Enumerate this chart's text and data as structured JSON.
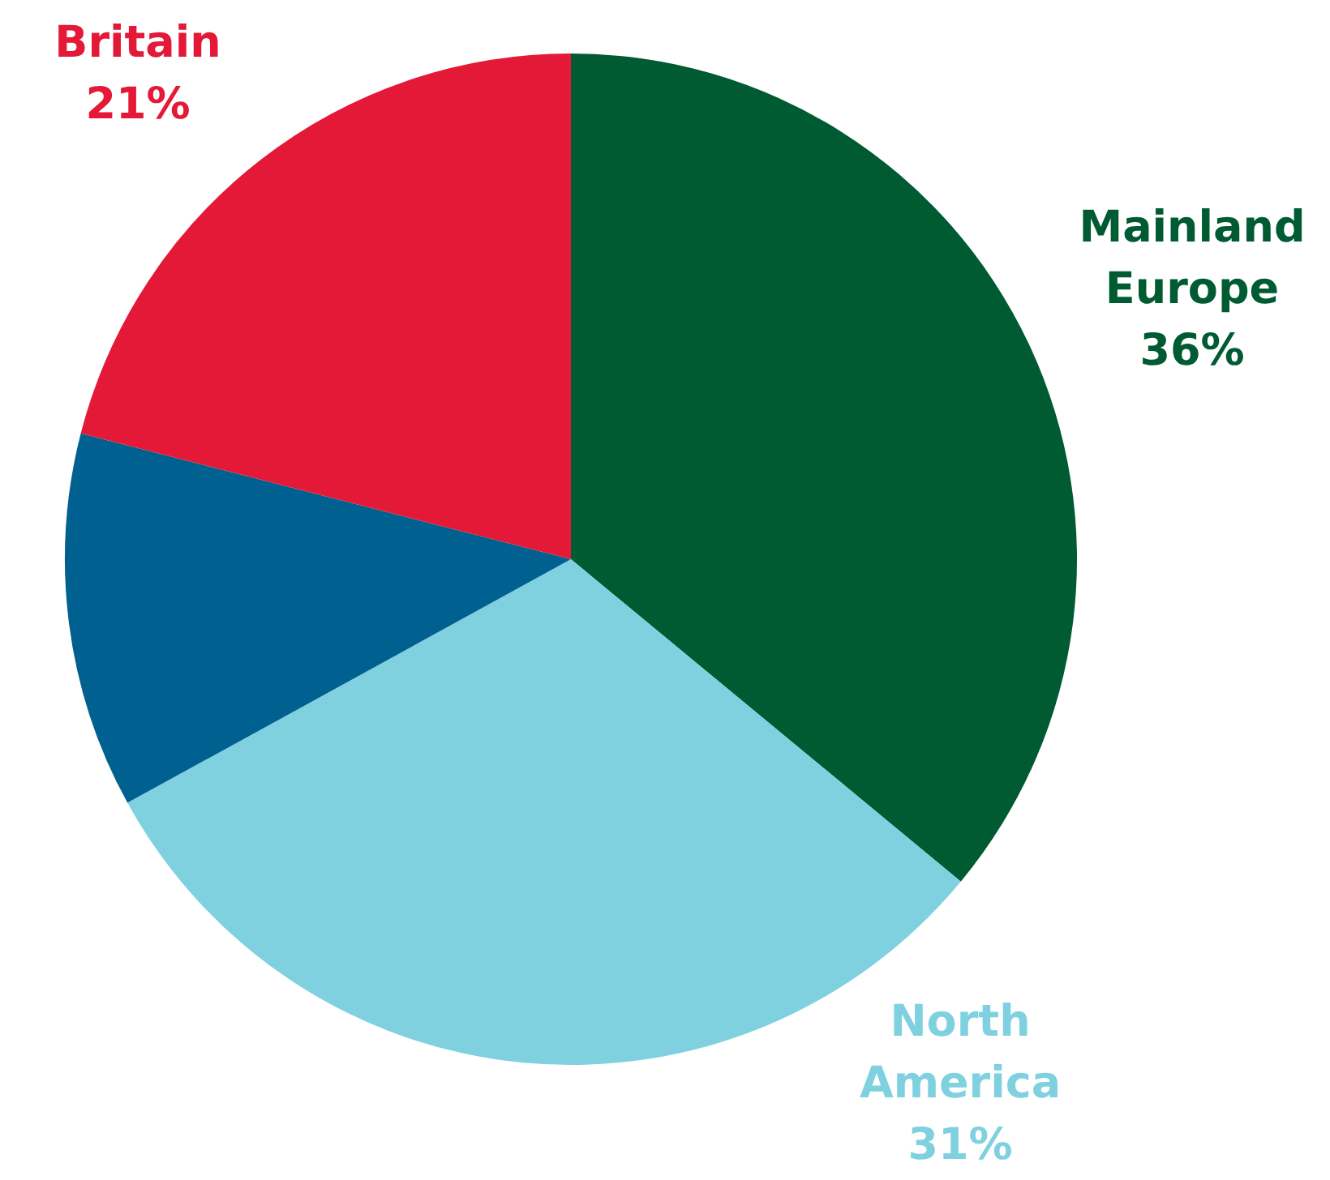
{
  "chart_data": {
    "type": "pie",
    "categories": [
      "Mainland Europe",
      "North America",
      null,
      "Britain"
    ],
    "values": [
      36,
      31,
      12,
      21
    ],
    "colors": [
      "#005a32",
      "#7fd1e0",
      "#00608f",
      "#e31937"
    ],
    "value_labels": [
      "36%",
      "31%",
      null,
      "21%"
    ],
    "legend": false
  }
}
